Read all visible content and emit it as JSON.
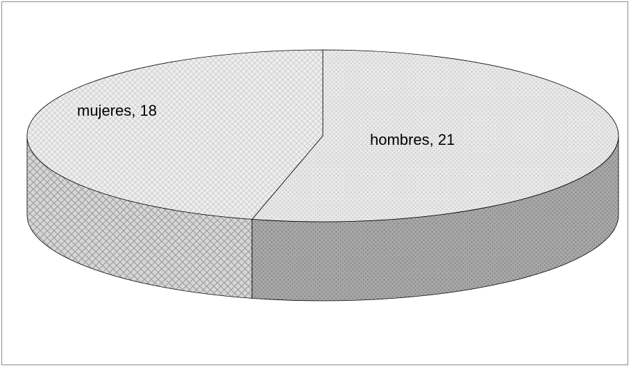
{
  "chart_data": {
    "type": "pie",
    "style": "3d",
    "title": "",
    "legend": "none",
    "slices": [
      {
        "label": "hombres",
        "value": 21,
        "text": "hombres, 21"
      },
      {
        "label": "mujeres",
        "value": 18,
        "text": "mujeres, 18"
      }
    ],
    "colors": {
      "hombres_top": "#e4e4e4",
      "hombres_side": "#9a9a9a",
      "mujeres_top": "#e9e9e9",
      "mujeres_side": "#cfcfcf",
      "outline": "#000000"
    }
  }
}
